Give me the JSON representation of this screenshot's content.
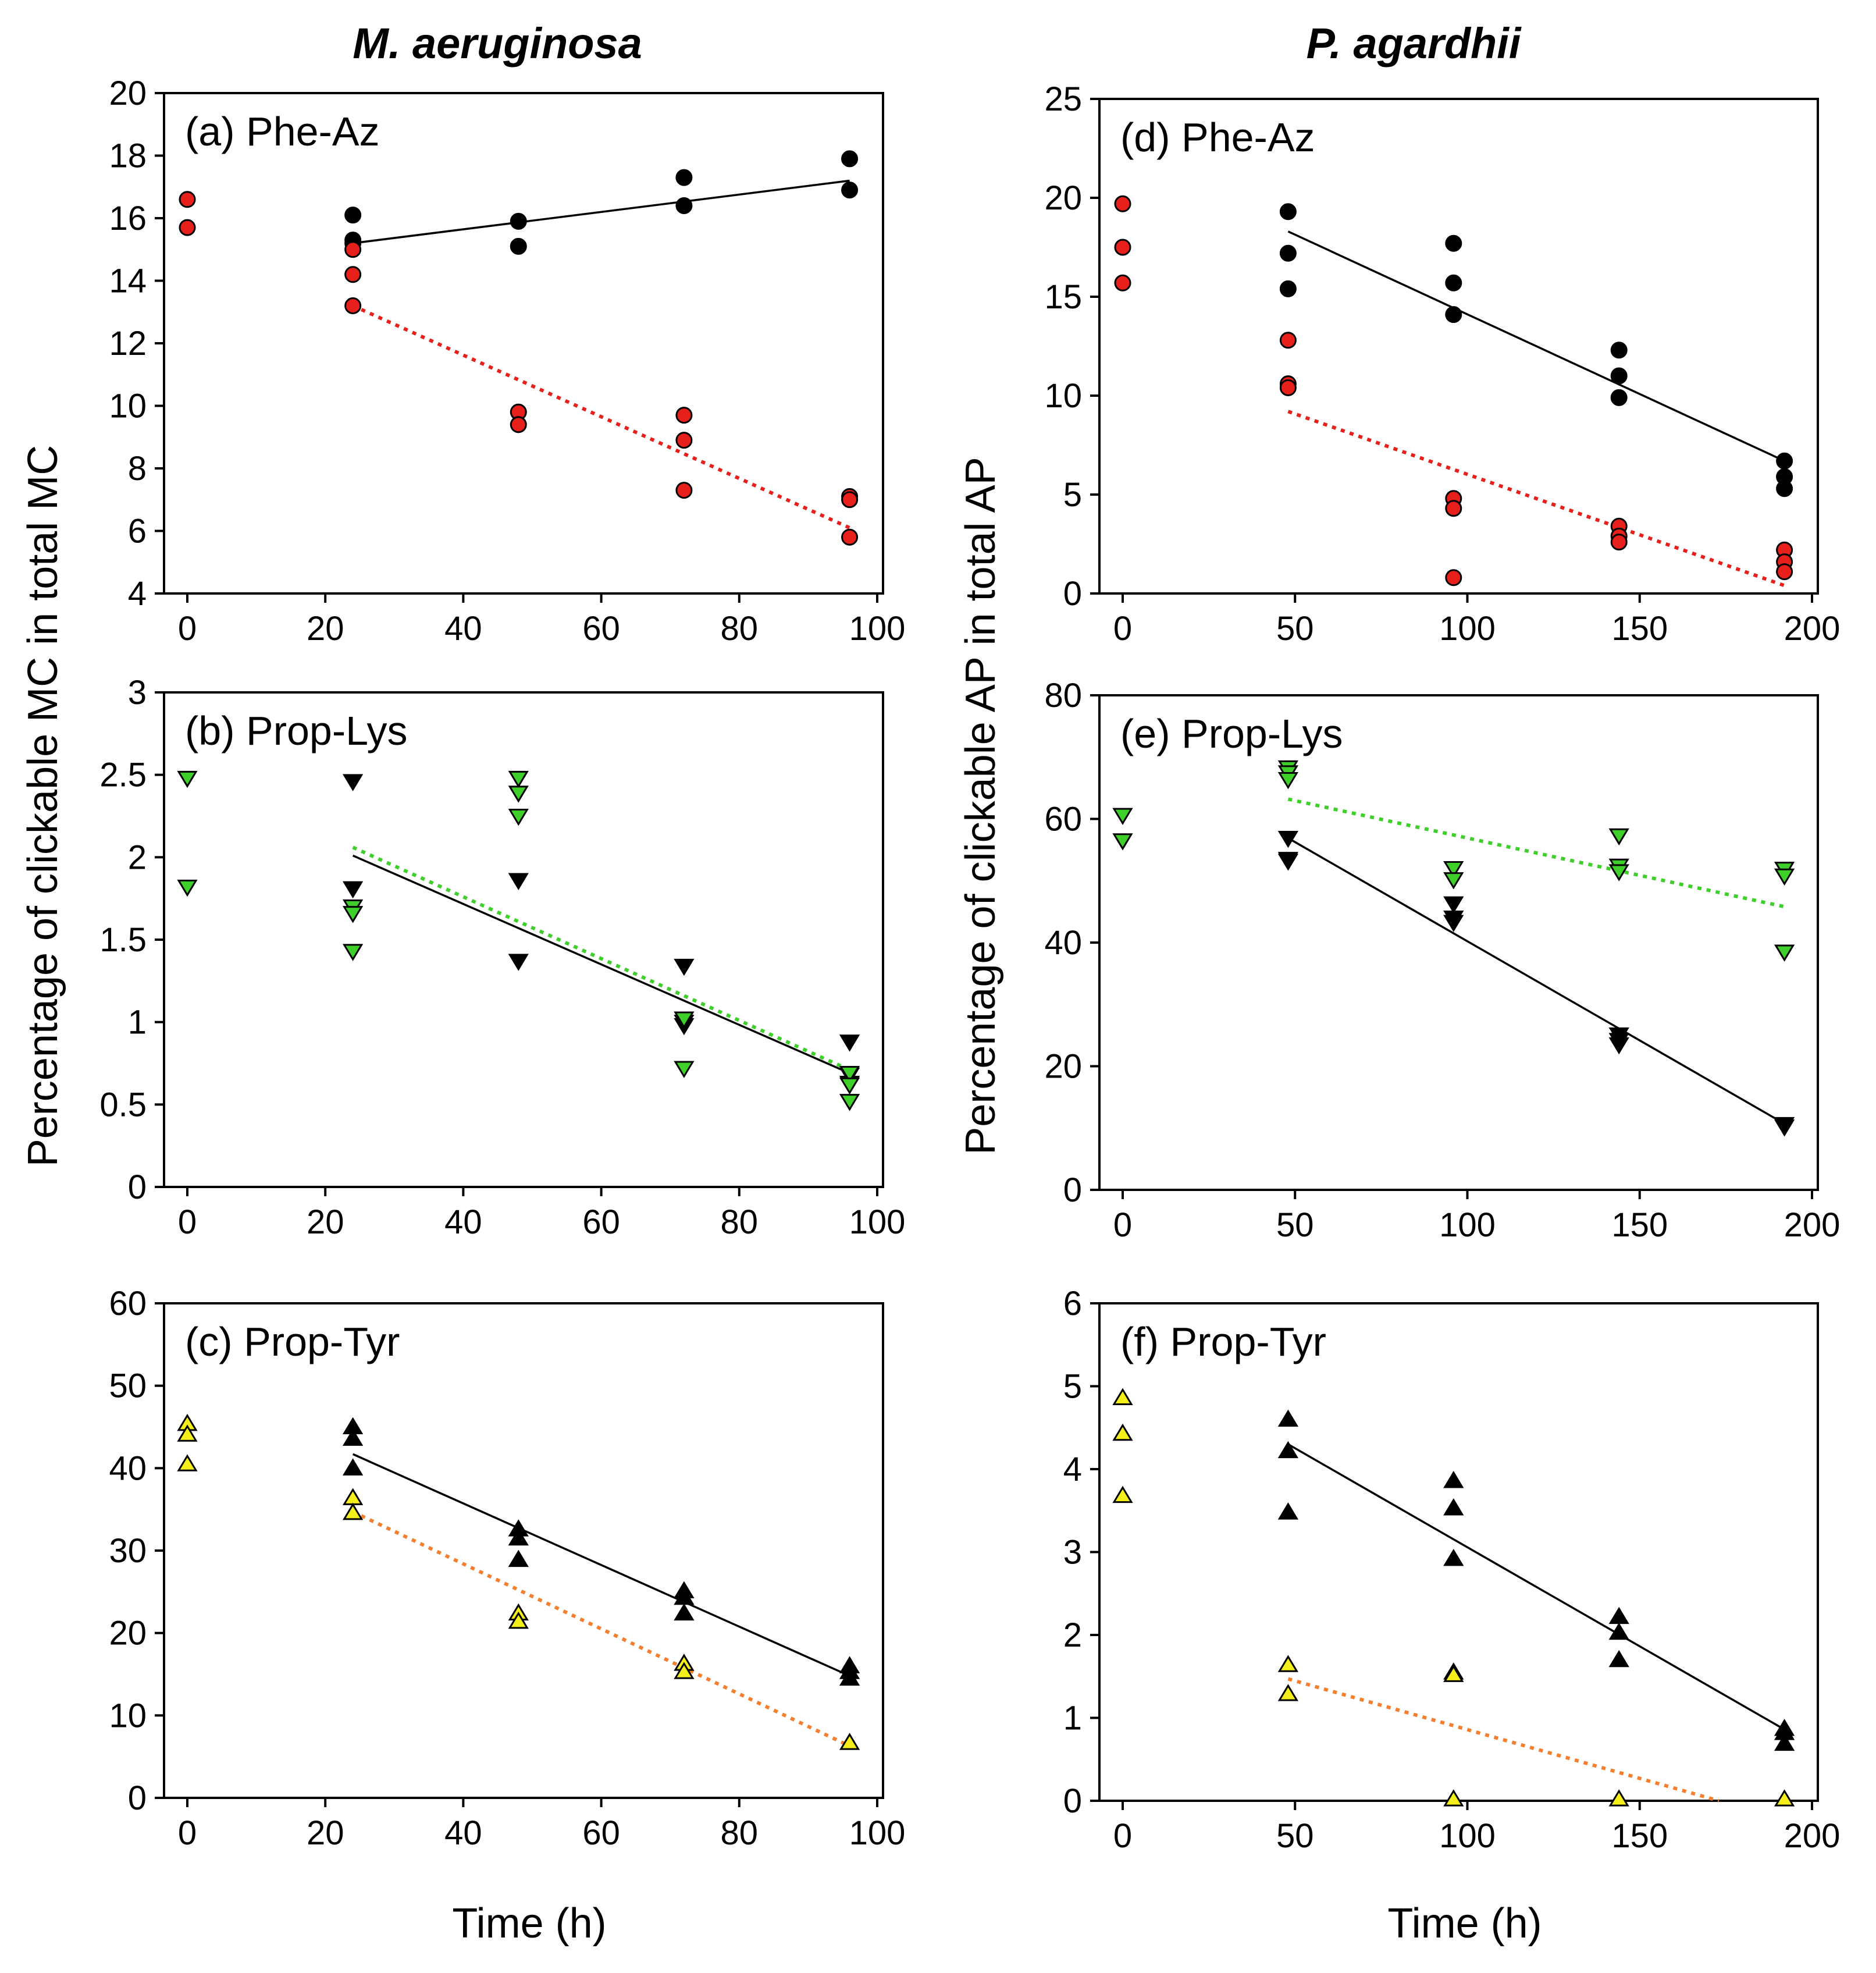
{
  "figure": {
    "column_titles": [
      "M. aeruginosa",
      "P. agardhii"
    ],
    "ylabel_left": "Percentage of clickable MC in total MC",
    "ylabel_right": "Percentage of clickable AP in total AP",
    "xlabel": "Time (h)"
  },
  "chart_data": [
    {
      "type": "scatter",
      "title": "(a) Phe-Az",
      "xlabel": "Time (h)",
      "ylabel": "Percentage of clickable MC in total MC",
      "xlim": [
        0,
        100
      ],
      "ylim": [
        4,
        20
      ],
      "xticks": [
        0,
        20,
        40,
        60,
        80,
        100
      ],
      "yticks": [
        4,
        6,
        8,
        10,
        12,
        14,
        16,
        18,
        20
      ],
      "series": [
        {
          "name": "black",
          "marker": "circle",
          "color": "#000000",
          "points": [
            [
              24,
              16.1
            ],
            [
              24,
              15.3
            ],
            [
              24,
              15.2
            ],
            [
              48,
              15.9
            ],
            [
              48,
              15.1
            ],
            [
              72,
              17.3
            ],
            [
              72,
              16.4
            ],
            [
              96,
              17.9
            ],
            [
              96,
              16.9
            ]
          ],
          "fit": {
            "x": [
              24,
              96
            ],
            "y": [
              15.2,
              17.2
            ],
            "style": "solid"
          }
        },
        {
          "name": "red",
          "marker": "circle",
          "color": "#e8201c",
          "points": [
            [
              0,
              16.6
            ],
            [
              0,
              15.7
            ],
            [
              24,
              15.0
            ],
            [
              24,
              14.2
            ],
            [
              24,
              13.2
            ],
            [
              48,
              9.8
            ],
            [
              48,
              9.4
            ],
            [
              72,
              9.7
            ],
            [
              72,
              8.9
            ],
            [
              72,
              7.3
            ],
            [
              96,
              7.1
            ],
            [
              96,
              7.0
            ],
            [
              96,
              5.8
            ]
          ],
          "fit": {
            "x": [
              24,
              96
            ],
            "y": [
              13.2,
              6.1
            ],
            "style": "dotted"
          }
        }
      ]
    },
    {
      "type": "scatter",
      "title": "(b) Prop-Lys",
      "xlabel": "Time (h)",
      "ylabel": "Percentage of clickable MC in total MC",
      "xlim": [
        0,
        100
      ],
      "ylim": [
        0,
        3
      ],
      "xticks": [
        0,
        20,
        40,
        60,
        80,
        100
      ],
      "yticks": [
        0,
        0.5,
        1,
        1.5,
        2,
        2.5,
        3
      ],
      "series": [
        {
          "name": "black",
          "marker": "triangle-down",
          "color": "#000000",
          "points": [
            [
              24,
              2.46
            ],
            [
              24,
              1.81
            ],
            [
              48,
              1.86
            ],
            [
              48,
              1.37
            ],
            [
              72,
              1.34
            ],
            [
              72,
              1.0
            ],
            [
              72,
              0.98
            ],
            [
              96,
              0.88
            ],
            [
              96,
              0.68
            ],
            [
              96,
              0.63
            ]
          ],
          "fit": {
            "x": [
              24,
              96
            ],
            "y": [
              2.01,
              0.69
            ],
            "style": "solid"
          }
        },
        {
          "name": "green",
          "marker": "triangle-down",
          "color": "#3fcf2a",
          "points": [
            [
              0,
              2.48
            ],
            [
              0,
              1.82
            ],
            [
              24,
              1.7
            ],
            [
              24,
              1.66
            ],
            [
              24,
              1.43
            ],
            [
              48,
              2.48
            ],
            [
              48,
              2.39
            ],
            [
              48,
              2.25
            ],
            [
              72,
              1.02
            ],
            [
              72,
              0.72
            ],
            [
              96,
              0.69
            ],
            [
              96,
              0.62
            ],
            [
              96,
              0.52
            ]
          ],
          "fit": {
            "x": [
              24,
              96
            ],
            "y": [
              2.06,
              0.71
            ],
            "style": "dotted"
          }
        }
      ]
    },
    {
      "type": "scatter",
      "title": "(c) Prop-Tyr",
      "xlabel": "Time (h)",
      "ylabel": "Percentage of clickable MC in total MC",
      "xlim": [
        0,
        100
      ],
      "ylim": [
        0,
        60
      ],
      "xticks": [
        0,
        20,
        40,
        60,
        80,
        100
      ],
      "yticks": [
        0,
        10,
        20,
        30,
        40,
        50,
        60
      ],
      "series": [
        {
          "name": "black",
          "marker": "triangle-up",
          "color": "#000000",
          "points": [
            [
              24,
              45.0
            ],
            [
              24,
              43.6
            ],
            [
              24,
              40.0
            ],
            [
              48,
              32.6
            ],
            [
              48,
              31.5
            ],
            [
              48,
              28.9
            ],
            [
              72,
              25.1
            ],
            [
              72,
              24.3
            ],
            [
              72,
              22.4
            ],
            [
              96,
              16.0
            ],
            [
              96,
              15.3
            ],
            [
              96,
              14.5
            ]
          ],
          "fit": {
            "x": [
              24,
              96
            ],
            "y": [
              41.7,
              14.8
            ],
            "style": "solid"
          }
        },
        {
          "name": "yellow",
          "marker": "triangle-up",
          "color": "#f4ee1a",
          "points": [
            [
              0,
              45.4
            ],
            [
              0,
              44.1
            ],
            [
              0,
              40.5
            ],
            [
              24,
              36.4
            ],
            [
              24,
              34.6
            ],
            [
              48,
              22.4
            ],
            [
              48,
              21.4
            ],
            [
              72,
              16.3
            ],
            [
              72,
              15.3
            ],
            [
              96,
              6.7
            ]
          ],
          "fit": {
            "x": [
              24,
              96
            ],
            "y": [
              34.7,
              6.3
            ],
            "style": "dotted",
            "color": "#f57f2f"
          }
        }
      ]
    },
    {
      "type": "scatter",
      "title": "(d) Phe-Az",
      "xlabel": "Time (h)",
      "ylabel": "Percentage of clickable AP in total AP",
      "xlim": [
        0,
        200
      ],
      "ylim": [
        0,
        25
      ],
      "xticks": [
        0,
        50,
        100,
        150,
        200
      ],
      "yticks": [
        0,
        5,
        10,
        15,
        20,
        25
      ],
      "series": [
        {
          "name": "black",
          "marker": "circle",
          "color": "#000000",
          "points": [
            [
              48,
              19.3
            ],
            [
              48,
              17.2
            ],
            [
              48,
              15.4
            ],
            [
              96,
              17.7
            ],
            [
              96,
              15.7
            ],
            [
              96,
              14.1
            ],
            [
              144,
              12.3
            ],
            [
              144,
              11.0
            ],
            [
              144,
              9.9
            ],
            [
              192,
              6.7
            ],
            [
              192,
              5.9
            ],
            [
              192,
              5.3
            ]
          ],
          "fit": {
            "x": [
              48,
              192
            ],
            "y": [
              18.3,
              6.7
            ],
            "style": "solid"
          }
        },
        {
          "name": "red",
          "marker": "circle",
          "color": "#e8201c",
          "points": [
            [
              0,
              19.7
            ],
            [
              0,
              17.5
            ],
            [
              0,
              15.7
            ],
            [
              48,
              12.8
            ],
            [
              48,
              10.6
            ],
            [
              48,
              10.4
            ],
            [
              96,
              4.8
            ],
            [
              96,
              4.3
            ],
            [
              96,
              0.8
            ],
            [
              144,
              3.4
            ],
            [
              144,
              2.9
            ],
            [
              144,
              2.6
            ],
            [
              192,
              2.2
            ],
            [
              192,
              1.6
            ],
            [
              192,
              1.1
            ]
          ],
          "fit": {
            "x": [
              48,
              192
            ],
            "y": [
              9.2,
              0.4
            ],
            "style": "dotted"
          }
        }
      ]
    },
    {
      "type": "scatter",
      "title": "(e) Prop-Lys",
      "xlabel": "Time (h)",
      "ylabel": "Percentage of clickable AP in total AP",
      "xlim": [
        0,
        200
      ],
      "ylim": [
        0,
        80
      ],
      "xticks": [
        0,
        50,
        100,
        150,
        200
      ],
      "yticks": [
        0,
        20,
        40,
        60,
        80
      ],
      "series": [
        {
          "name": "black",
          "marker": "triangle-down",
          "color": "#000000",
          "points": [
            [
              48,
              56.9
            ],
            [
              48,
              53.5
            ],
            [
              48,
              53.2
            ],
            [
              96,
              46.3
            ],
            [
              96,
              44.0
            ],
            [
              96,
              43.3
            ],
            [
              144,
              25.1
            ],
            [
              144,
              24.2
            ],
            [
              144,
              23.5
            ],
            [
              192,
              10.6
            ],
            [
              192,
              10.2
            ]
          ],
          "fit": {
            "x": [
              48,
              192
            ],
            "y": [
              56.9,
              10.7
            ],
            "style": "solid"
          }
        },
        {
          "name": "green",
          "marker": "triangle-down",
          "color": "#3fcf2a",
          "points": [
            [
              0,
              60.6
            ],
            [
              0,
              56.5
            ],
            [
              48,
              68.3
            ],
            [
              48,
              67.5
            ],
            [
              48,
              66.4
            ],
            [
              96,
              52.0
            ],
            [
              96,
              50.2
            ],
            [
              144,
              57.3
            ],
            [
              144,
              52.4
            ],
            [
              144,
              51.5
            ],
            [
              192,
              51.9
            ],
            [
              192,
              50.8
            ],
            [
              192,
              38.5
            ]
          ],
          "fit": {
            "x": [
              48,
              192
            ],
            "y": [
              63.2,
              45.8
            ],
            "style": "dotted"
          }
        }
      ]
    },
    {
      "type": "scatter",
      "title": "(f) Prop-Tyr",
      "xlabel": "Time (h)",
      "ylabel": "Percentage of clickable AP in total AP",
      "xlim": [
        0,
        200
      ],
      "ylim": [
        0,
        6
      ],
      "xticks": [
        0,
        50,
        100,
        150,
        200
      ],
      "yticks": [
        0,
        1,
        2,
        3,
        4,
        5,
        6
      ],
      "series": [
        {
          "name": "black",
          "marker": "triangle-up",
          "color": "#000000",
          "points": [
            [
              48,
              4.6
            ],
            [
              48,
              4.22
            ],
            [
              48,
              3.48
            ],
            [
              96,
              3.86
            ],
            [
              96,
              3.53
            ],
            [
              96,
              2.92
            ],
            [
              144,
              2.22
            ],
            [
              144,
              2.03
            ],
            [
              144,
              1.7
            ],
            [
              192,
              0.87
            ],
            [
              192,
              0.82
            ],
            [
              192,
              0.69
            ]
          ],
          "fit": {
            "x": [
              48,
              192
            ],
            "y": [
              4.3,
              0.86
            ],
            "style": "solid"
          }
        },
        {
          "name": "yellow",
          "marker": "triangle-up",
          "color": "#f4ee1a",
          "points": [
            [
              0,
              4.86
            ],
            [
              0,
              4.43
            ],
            [
              0,
              3.68
            ],
            [
              48,
              1.64
            ],
            [
              48,
              1.29
            ],
            [
              96,
              1.55
            ],
            [
              96,
              1.52
            ],
            [
              96,
              0.02
            ],
            [
              144,
              0.02
            ],
            [
              192,
              0.02
            ]
          ],
          "fit": {
            "x": [
              48,
              173
            ],
            "y": [
              1.47,
              0.0
            ],
            "style": "dotted",
            "color": "#f57f2f"
          }
        }
      ]
    }
  ]
}
